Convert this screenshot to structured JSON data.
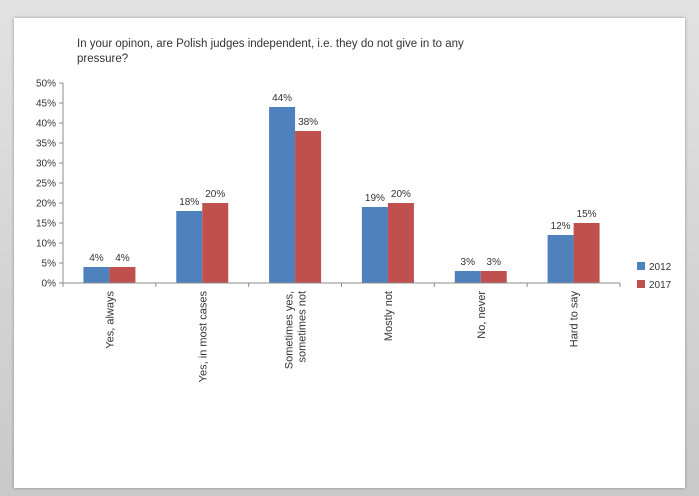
{
  "chart_data": {
    "type": "bar",
    "title_lines": [
      "In your opinon, are Polish judges independent, i.e. they do not give in to any",
      "pressure?"
    ],
    "categories": [
      "Yes, always",
      "Yes, in most cases",
      "Sometimes yes, sometimes not",
      "Mostly not",
      "No, never",
      "Hard to say"
    ],
    "category_lines": [
      [
        "Yes, always"
      ],
      [
        "Yes, in most cases"
      ],
      [
        "Sometimes yes,",
        "sometimes not"
      ],
      [
        "Mostly not"
      ],
      [
        "No, never"
      ],
      [
        "Hard to say"
      ]
    ],
    "series": [
      {
        "name": "2012",
        "color": "#4f81bd",
        "values": [
          4,
          18,
          44,
          19,
          3,
          12
        ]
      },
      {
        "name": "2017",
        "color": "#c0504d",
        "values": [
          4,
          20,
          38,
          20,
          3,
          15
        ]
      }
    ],
    "data_labels": [
      [
        "4%",
        "18%",
        "44%",
        "19%",
        "3%",
        "12%"
      ],
      [
        "4%",
        "20%",
        "38%",
        "20%",
        "3%",
        "15%"
      ]
    ],
    "yticks": [
      "0%",
      "5%",
      "10%",
      "15%",
      "20%",
      "25%",
      "30%",
      "35%",
      "40%",
      "45%",
      "50%"
    ],
    "ylim": [
      0,
      50
    ],
    "grid": false,
    "legend_position": "right"
  }
}
